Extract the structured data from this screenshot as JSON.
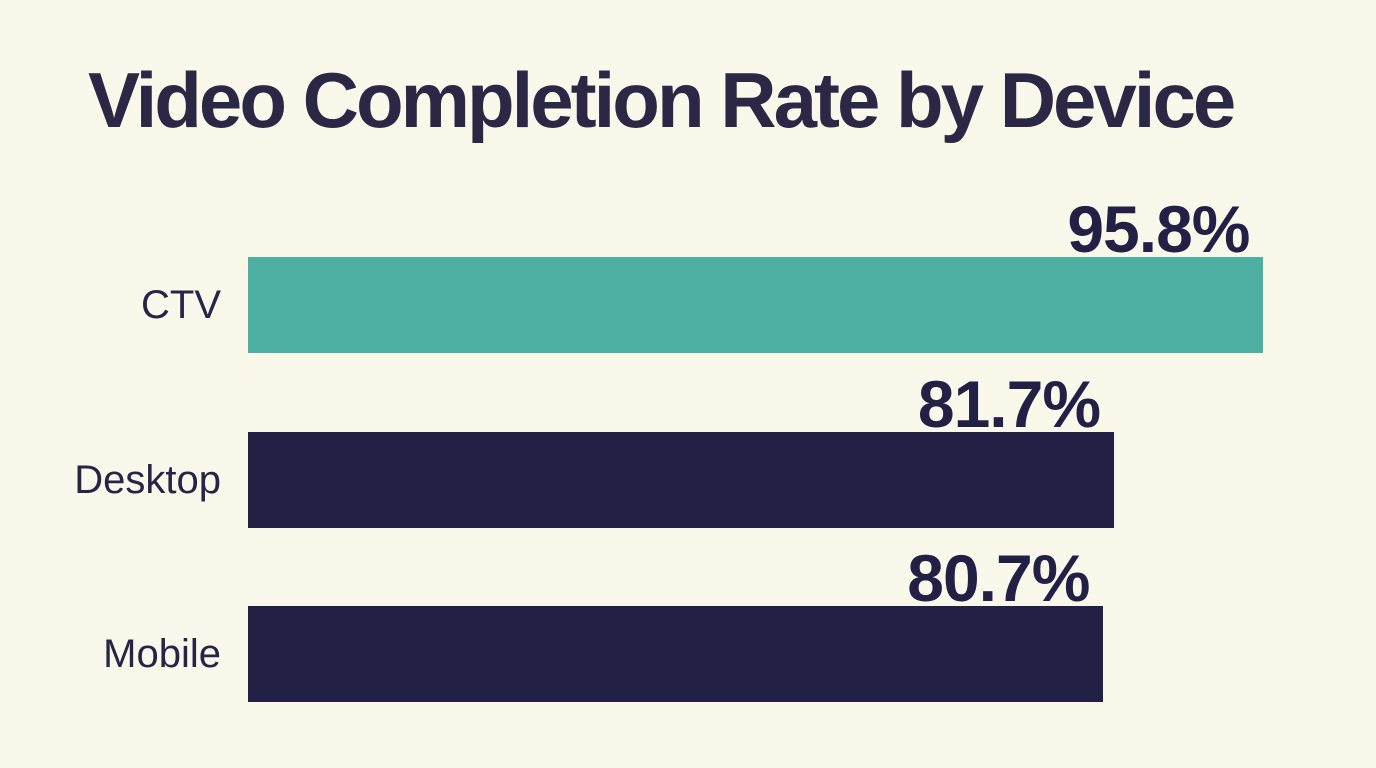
{
  "chart_data": {
    "type": "bar",
    "orientation": "horizontal",
    "title": "Video Completion Rate by Device",
    "categories": [
      "CTV",
      "Desktop",
      "Mobile"
    ],
    "values": [
      95.8,
      81.7,
      80.7
    ],
    "value_labels": [
      "95.8%",
      "81.7%",
      "80.7%"
    ],
    "bar_colors": [
      "#4DAEA2",
      "#232046",
      "#232046"
    ],
    "xlabel": "",
    "ylabel": "",
    "xlim": [
      0,
      100
    ],
    "grid": false,
    "legend": false,
    "colors": {
      "background": "#FAF7EB",
      "title_text": "#2B2745",
      "category_text": "#282447",
      "value_text": "#232046",
      "bar_teal": "#4DAEA2",
      "bar_navy": "#232046"
    }
  }
}
